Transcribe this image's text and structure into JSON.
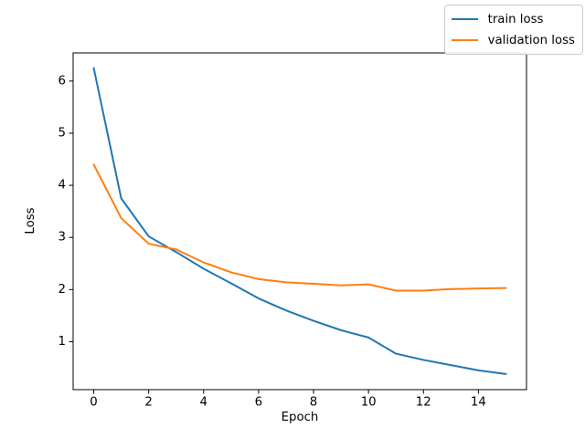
{
  "figure": {
    "background": "#ffffff"
  },
  "chart_data": {
    "type": "line",
    "title": "",
    "xlabel": "Epoch",
    "ylabel": "Loss",
    "x": [
      0,
      1,
      2,
      3,
      4,
      5,
      6,
      7,
      8,
      9,
      10,
      11,
      12,
      13,
      14,
      15
    ],
    "series": [
      {
        "name": "train loss",
        "color": "#1f77b4",
        "values": [
          6.25,
          3.75,
          3.02,
          2.72,
          2.4,
          2.12,
          1.83,
          1.6,
          1.4,
          1.22,
          1.08,
          0.77,
          0.65,
          0.55,
          0.45,
          0.38
        ]
      },
      {
        "name": "validation loss",
        "color": "#ff7f0e",
        "values": [
          4.4,
          3.37,
          2.88,
          2.77,
          2.52,
          2.33,
          2.2,
          2.14,
          2.11,
          2.08,
          2.1,
          1.98,
          1.98,
          2.01,
          2.02,
          2.03
        ]
      }
    ],
    "xlim": [
      -0.75,
      15.75
    ],
    "ylim": [
      0.08,
      6.54
    ],
    "xticks": [
      0,
      2,
      4,
      6,
      8,
      10,
      12,
      14
    ],
    "yticks": [
      1,
      2,
      3,
      4,
      5,
      6
    ],
    "grid": false,
    "legend_position": "upper right",
    "spine_color": "#000000",
    "tick_label_color": "#000000"
  }
}
